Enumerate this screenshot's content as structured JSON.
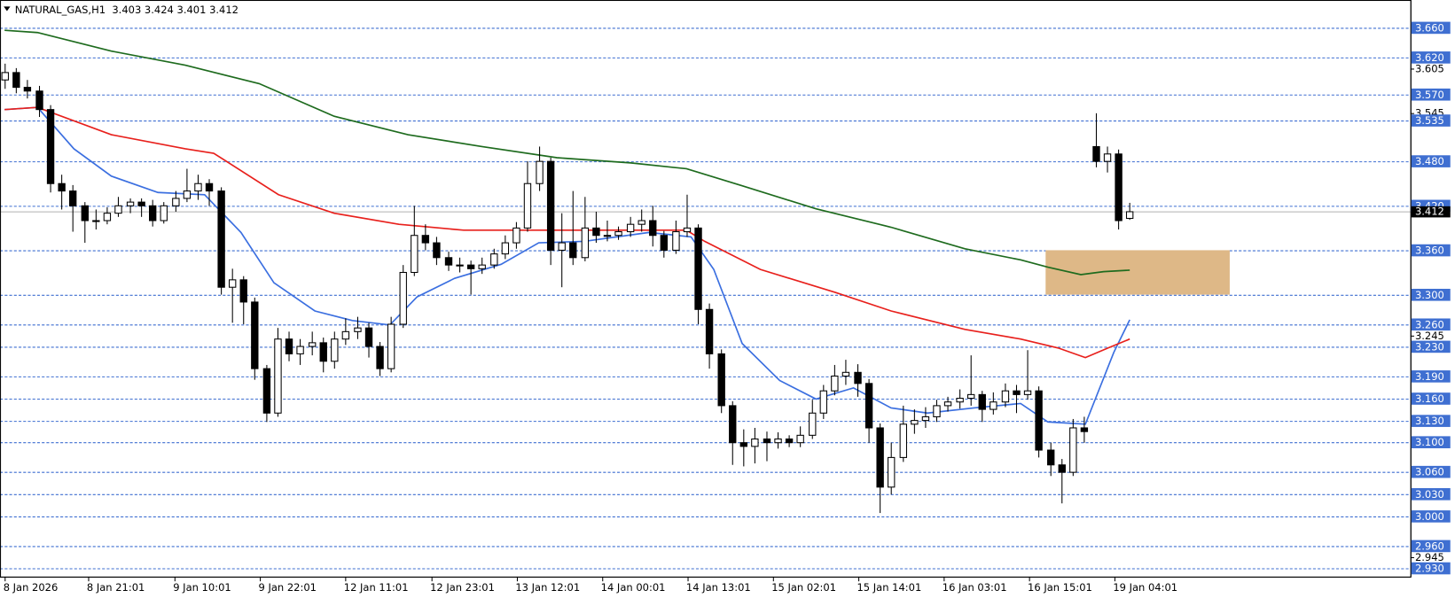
{
  "chart_data": {
    "type": "candlestick",
    "title": "NATURAL_GAS,H1  3.403 3.424 3.401 3.412",
    "xlim": [
      -0.4,
      123.7
    ],
    "ylim": [
      2.919,
      3.698
    ],
    "xticks": [
      {
        "value": 0,
        "label": "8 Jan 2026"
      },
      {
        "value": 7.35,
        "label": "8 Jan 21:01"
      },
      {
        "value": 14.94,
        "label": "9 Jan 10:01"
      },
      {
        "value": 22.45,
        "label": "9 Jan 22:01"
      },
      {
        "value": 29.96,
        "label": "12 Jan 11:01"
      },
      {
        "value": 37.55,
        "label": "12 Jan 23:01"
      },
      {
        "value": 45.06,
        "label": "13 Jan 12:01"
      },
      {
        "value": 52.57,
        "label": "14 Jan 00:01"
      },
      {
        "value": 60.08,
        "label": "14 Jan 13:01"
      },
      {
        "value": 67.59,
        "label": "15 Jan 02:01"
      },
      {
        "value": 75.1,
        "label": "15 Jan 14:01"
      },
      {
        "value": 82.61,
        "label": "16 Jan 03:01"
      },
      {
        "value": 90.12,
        "label": "16 Jan 15:01"
      },
      {
        "value": 97.63,
        "label": "19 Jan 04:01"
      }
    ],
    "yticks": [
      {
        "value": 3.605,
        "label": "3.605"
      },
      {
        "value": 3.545,
        "label": "3.545"
      },
      {
        "value": 3.245,
        "label": "3.245"
      },
      {
        "value": 2.945,
        "label": "2.945"
      }
    ],
    "levels": [
      {
        "value": 3.66,
        "label": "3.660"
      },
      {
        "value": 3.62,
        "label": "3.620"
      },
      {
        "value": 3.57,
        "label": "3.570"
      },
      {
        "value": 3.535,
        "label": "3.535"
      },
      {
        "value": 3.48,
        "label": "3.480"
      },
      {
        "value": 3.42,
        "label": "3.420"
      },
      {
        "value": 3.36,
        "label": "3.360"
      },
      {
        "value": 3.3,
        "label": "3.300"
      },
      {
        "value": 3.26,
        "label": "3.260"
      },
      {
        "value": 3.23,
        "label": "3.230"
      },
      {
        "value": 3.19,
        "label": "3.190"
      },
      {
        "value": 3.16,
        "label": "3.160"
      },
      {
        "value": 3.13,
        "label": "3.130"
      },
      {
        "value": 3.1,
        "label": "3.100"
      },
      {
        "value": 3.06,
        "label": "3.060"
      },
      {
        "value": 3.03,
        "label": "3.030"
      },
      {
        "value": 3,
        "label": "3.000"
      },
      {
        "value": 2.96,
        "label": "2.960"
      },
      {
        "value": 2.93,
        "label": "2.930"
      }
    ],
    "level_color": "#3f6fd1",
    "current_price": {
      "value": 3.412,
      "label": "3.412"
    },
    "zone": {
      "x": [
        91.6,
        107.8
      ],
      "y": [
        3.36,
        3.3
      ],
      "color": "#deb887"
    },
    "up_color": "#ffffff",
    "down_color": "#000000",
    "ohlc": [
      [
        3.59,
        3.612,
        3.578,
        3.6
      ],
      [
        3.6,
        3.606,
        3.572,
        3.58
      ],
      [
        3.58,
        3.59,
        3.565,
        3.575
      ],
      [
        3.575,
        3.582,
        3.54,
        3.55
      ],
      [
        3.55,
        3.556,
        3.438,
        3.45
      ],
      [
        3.45,
        3.462,
        3.415,
        3.44
      ],
      [
        3.44,
        3.448,
        3.385,
        3.42
      ],
      [
        3.42,
        3.425,
        3.37,
        3.4
      ],
      [
        3.4,
        3.415,
        3.388,
        3.4
      ],
      [
        3.4,
        3.418,
        3.395,
        3.41
      ],
      [
        3.41,
        3.432,
        3.405,
        3.42
      ],
      [
        3.42,
        3.43,
        3.41,
        3.425
      ],
      [
        3.425,
        3.43,
        3.405,
        3.42
      ],
      [
        3.42,
        3.428,
        3.392,
        3.4
      ],
      [
        3.4,
        3.425,
        3.396,
        3.42
      ],
      [
        3.42,
        3.44,
        3.412,
        3.43
      ],
      [
        3.43,
        3.47,
        3.425,
        3.44
      ],
      [
        3.44,
        3.462,
        3.428,
        3.45
      ],
      [
        3.45,
        3.456,
        3.42,
        3.44
      ],
      [
        3.44,
        3.445,
        3.3,
        3.31
      ],
      [
        3.31,
        3.335,
        3.262,
        3.32
      ],
      [
        3.32,
        3.325,
        3.26,
        3.29
      ],
      [
        3.29,
        3.296,
        3.185,
        3.2
      ],
      [
        3.2,
        3.205,
        3.128,
        3.14
      ],
      [
        3.14,
        3.255,
        3.135,
        3.24
      ],
      [
        3.24,
        3.25,
        3.21,
        3.22
      ],
      [
        3.22,
        3.24,
        3.205,
        3.23
      ],
      [
        3.23,
        3.25,
        3.218,
        3.235
      ],
      [
        3.235,
        3.242,
        3.195,
        3.21
      ],
      [
        3.21,
        3.25,
        3.2,
        3.24
      ],
      [
        3.24,
        3.268,
        3.232,
        3.25
      ],
      [
        3.25,
        3.27,
        3.24,
        3.255
      ],
      [
        3.255,
        3.262,
        3.215,
        3.23
      ],
      [
        3.23,
        3.236,
        3.19,
        3.2
      ],
      [
        3.2,
        3.27,
        3.195,
        3.26
      ],
      [
        3.26,
        3.34,
        3.255,
        3.33
      ],
      [
        3.33,
        3.42,
        3.325,
        3.38
      ],
      [
        3.38,
        3.395,
        3.36,
        3.37
      ],
      [
        3.37,
        3.378,
        3.34,
        3.35
      ],
      [
        3.35,
        3.358,
        3.332,
        3.34
      ],
      [
        3.34,
        3.35,
        3.33,
        3.34
      ],
      [
        3.34,
        3.346,
        3.3,
        3.335
      ],
      [
        3.335,
        3.35,
        3.328,
        3.34
      ],
      [
        3.34,
        3.362,
        3.335,
        3.355
      ],
      [
        3.355,
        3.38,
        3.348,
        3.37
      ],
      [
        3.37,
        3.398,
        3.362,
        3.39
      ],
      [
        3.39,
        3.48,
        3.385,
        3.45
      ],
      [
        3.45,
        3.5,
        3.44,
        3.48
      ],
      [
        3.48,
        3.485,
        3.34,
        3.36
      ],
      [
        3.36,
        3.41,
        3.31,
        3.37
      ],
      [
        3.37,
        3.44,
        3.34,
        3.35
      ],
      [
        3.35,
        3.432,
        3.345,
        3.39
      ],
      [
        3.39,
        3.412,
        3.37,
        3.38
      ],
      [
        3.38,
        3.4,
        3.372,
        3.38
      ],
      [
        3.38,
        3.392,
        3.374,
        3.385
      ],
      [
        3.385,
        3.405,
        3.378,
        3.395
      ],
      [
        3.395,
        3.415,
        3.385,
        3.4
      ],
      [
        3.4,
        3.42,
        3.365,
        3.38
      ],
      [
        3.38,
        3.386,
        3.35,
        3.36
      ],
      [
        3.36,
        3.4,
        3.355,
        3.385
      ],
      [
        3.385,
        3.435,
        3.378,
        3.39
      ],
      [
        3.39,
        3.395,
        3.26,
        3.28
      ],
      [
        3.28,
        3.288,
        3.2,
        3.22
      ],
      [
        3.22,
        3.226,
        3.14,
        3.15
      ],
      [
        3.15,
        3.156,
        3.07,
        3.1
      ],
      [
        3.1,
        3.118,
        3.068,
        3.095
      ],
      [
        3.095,
        3.12,
        3.072,
        3.105
      ],
      [
        3.105,
        3.115,
        3.075,
        3.1
      ],
      [
        3.1,
        3.114,
        3.092,
        3.105
      ],
      [
        3.105,
        3.11,
        3.094,
        3.1
      ],
      [
        3.1,
        3.122,
        3.094,
        3.11
      ],
      [
        3.11,
        3.158,
        3.105,
        3.14
      ],
      [
        3.14,
        3.178,
        3.132,
        3.17
      ],
      [
        3.17,
        3.205,
        3.164,
        3.19
      ],
      [
        3.19,
        3.212,
        3.178,
        3.195
      ],
      [
        3.195,
        3.206,
        3.162,
        3.18
      ],
      [
        3.18,
        3.186,
        3.1,
        3.12
      ],
      [
        3.12,
        3.126,
        3.005,
        3.04
      ],
      [
        3.04,
        3.1,
        3.03,
        3.08
      ],
      [
        3.08,
        3.15,
        3.074,
        3.125
      ],
      [
        3.125,
        3.145,
        3.112,
        3.13
      ],
      [
        3.13,
        3.148,
        3.12,
        3.135
      ],
      [
        3.135,
        3.158,
        3.128,
        3.15
      ],
      [
        3.15,
        3.162,
        3.142,
        3.155
      ],
      [
        3.155,
        3.172,
        3.146,
        3.16
      ],
      [
        3.16,
        3.218,
        3.15,
        3.165
      ],
      [
        3.165,
        3.17,
        3.128,
        3.145
      ],
      [
        3.145,
        3.168,
        3.138,
        3.155
      ],
      [
        3.155,
        3.18,
        3.148,
        3.17
      ],
      [
        3.17,
        3.178,
        3.14,
        3.165
      ],
      [
        3.165,
        3.225,
        3.158,
        3.17
      ],
      [
        3.17,
        3.176,
        3.08,
        3.09
      ],
      [
        3.09,
        3.1,
        3.055,
        3.07
      ],
      [
        3.07,
        3.078,
        3.018,
        3.06
      ],
      [
        3.06,
        3.132,
        3.055,
        3.12
      ],
      [
        3.12,
        3.135,
        3.1,
        3.115
      ],
      [
        3.5,
        3.545,
        3.472,
        3.48
      ],
      [
        3.48,
        3.5,
        3.465,
        3.49
      ],
      [
        3.49,
        3.496,
        3.388,
        3.4
      ],
      [
        3.403,
        3.424,
        3.401,
        3.412
      ]
    ],
    "ma": [
      {
        "color": "#3b6fe0",
        "x": [
          0,
          2.9,
          6.1,
          9.4,
          13.5,
          17.6,
          20.8,
          23.7,
          27.3,
          30.6,
          33.9,
          36.3,
          39.6,
          43.7,
          47,
          51,
          56.7,
          60.4,
          62.4,
          64.9,
          68.2,
          71.4,
          74.7,
          78,
          81.2,
          85.3,
          89.4,
          91.8,
          95.1,
          97.6,
          99
        ],
        "values": [
          3.55,
          3.553,
          3.497,
          3.46,
          3.438,
          3.435,
          3.384,
          3.316,
          3.278,
          3.265,
          3.259,
          3.297,
          3.322,
          3.341,
          3.37,
          3.372,
          3.384,
          3.378,
          3.334,
          3.234,
          3.184,
          3.159,
          3.174,
          3.147,
          3.14,
          3.147,
          3.153,
          3.128,
          3.125,
          3.222,
          3.266
        ]
      },
      {
        "color": "#e8201c",
        "x": [
          0,
          2.9,
          9.4,
          15.9,
          18.4,
          24.1,
          29,
          34.7,
          40.4,
          45.3,
          51.8,
          60,
          61.6,
          66.5,
          73.1,
          78,
          84.5,
          89.4,
          92.7,
          95.1,
          97.1,
          99
        ],
        "values": [
          3.55,
          3.553,
          3.516,
          3.497,
          3.491,
          3.435,
          3.41,
          3.395,
          3.387,
          3.387,
          3.387,
          3.387,
          3.372,
          3.334,
          3.303,
          3.278,
          3.253,
          3.24,
          3.228,
          3.215,
          3.228,
          3.24
        ]
      },
      {
        "color": "#1e6b1e",
        "x": [
          0,
          2.9,
          9.4,
          15.9,
          22.4,
          29,
          35.5,
          42,
          48.6,
          55.1,
          60,
          64.9,
          71.4,
          78,
          84.5,
          89.4,
          91.8,
          94.7,
          96.7,
          99
        ],
        "values": [
          3.657,
          3.654,
          3.629,
          3.61,
          3.585,
          3.541,
          3.516,
          3.5,
          3.485,
          3.478,
          3.47,
          3.447,
          3.416,
          3.391,
          3.362,
          3.347,
          3.337,
          3.327,
          3.331,
          3.333
        ]
      }
    ]
  }
}
